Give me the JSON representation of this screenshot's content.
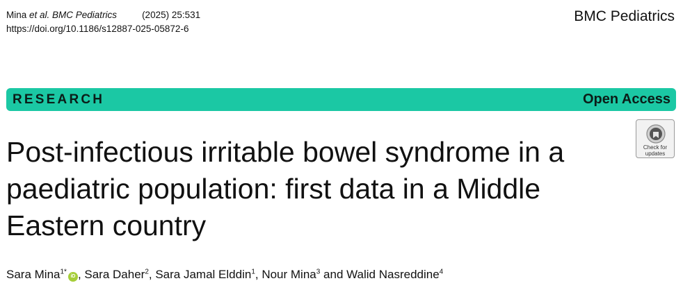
{
  "header": {
    "citation_author": "Mina ",
    "citation_etal": "et al. BMC Pediatrics",
    "citation_year": "(2025) 25:531",
    "doi": "https://doi.org/10.1186/s12887-025-05872-6",
    "journal_name": "BMC Pediatrics"
  },
  "banner": {
    "type_label": "RESEARCH",
    "access_label": "Open Access",
    "color": "#1bc8a4"
  },
  "check_updates": {
    "label_line1": "Check for",
    "label_line2": "updates"
  },
  "article": {
    "title_lines": [
      "Post-infectious irritable bowel syndrome in a",
      "paediatric population: first data in a Middle",
      "Eastern country"
    ]
  },
  "authors": [
    {
      "name": "Sara Mina",
      "aff": "1*"
    },
    {
      "name": "Sara Daher",
      "aff": "2"
    },
    {
      "name": "Sara Jamal Elddin",
      "aff": "1"
    },
    {
      "name": "Nour Mina",
      "aff": "3"
    },
    {
      "name": "Walid Nasreddine",
      "aff": "4"
    }
  ],
  "author_separators": {
    "comma": ", ",
    "and": " and "
  },
  "icons": {
    "orcid": "orcid-icon",
    "check_updates": "check-for-updates-icon"
  }
}
